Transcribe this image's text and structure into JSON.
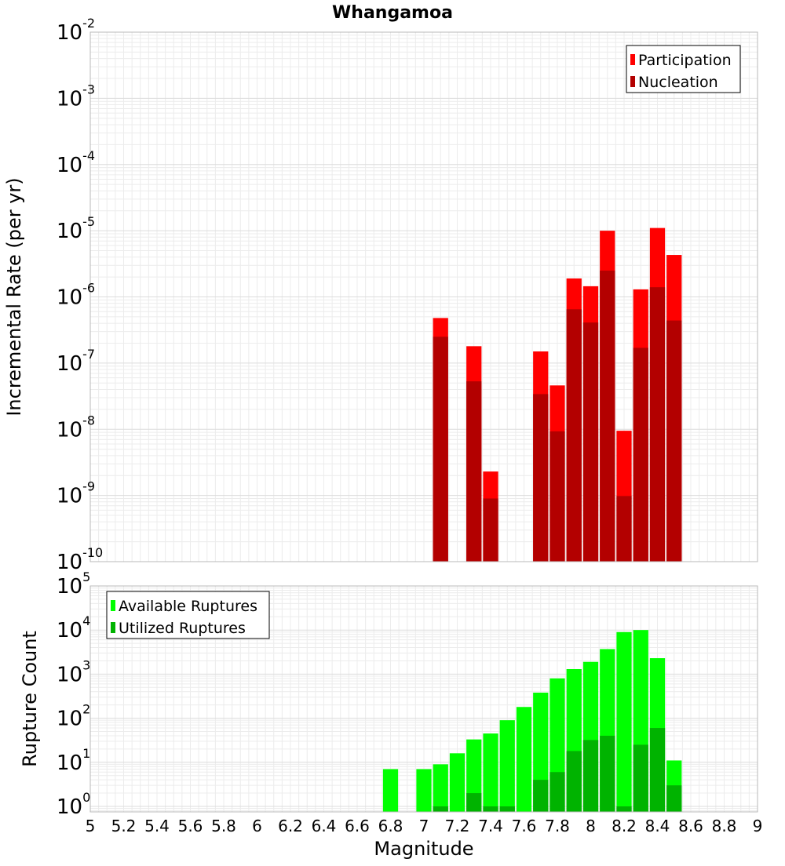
{
  "chart_data": [
    {
      "id": "rate",
      "type": "bar",
      "title": "Whangamoa",
      "xlabel": "",
      "ylabel": "Incremental Rate (per yr)",
      "yscale": "log",
      "ylim": [
        1e-10,
        0.01
      ],
      "xlim": [
        5,
        9
      ],
      "y_tick_exponents": [
        -10,
        -9,
        -8,
        -7,
        -6,
        -5,
        -4,
        -3,
        -2
      ],
      "grid": true,
      "legend_position": "top-right",
      "bin_width": 0.1,
      "series": [
        {
          "name": "Participation",
          "color": "#ff0000",
          "x": [
            7.1,
            7.3,
            7.4,
            7.7,
            7.8,
            7.9,
            8.0,
            8.1,
            8.2,
            8.3,
            8.4,
            8.5
          ],
          "values": [
            4.8e-07,
            1.8e-07,
            2.3e-09,
            1.5e-07,
            4.6e-08,
            1.9e-06,
            1.45e-06,
            1e-05,
            9.5e-09,
            1.3e-06,
            1.1e-05,
            4.3e-06
          ]
        },
        {
          "name": "Nucleation",
          "color": "#b30000",
          "x": [
            7.1,
            7.3,
            7.4,
            7.7,
            7.8,
            7.9,
            8.0,
            8.1,
            8.2,
            8.3,
            8.4,
            8.5
          ],
          "values": [
            2.5e-07,
            5.3e-08,
            9e-10,
            3.4e-08,
            9.3e-09,
            6.5e-07,
            4.1e-07,
            2.5e-06,
            9.8e-10,
            1.7e-07,
            1.4e-06,
            4.4e-07
          ]
        }
      ]
    },
    {
      "id": "count",
      "type": "bar",
      "xlabel": "Magnitude",
      "ylabel": "Rupture Count",
      "yscale": "log",
      "ylim": [
        0.75,
        100000
      ],
      "xlim": [
        5,
        9
      ],
      "y_tick_exponents": [
        0,
        1,
        2,
        3,
        4,
        5
      ],
      "x_ticks": [
        "5",
        "5.2",
        "5.4",
        "5.6",
        "5.8",
        "6",
        "6.2",
        "6.4",
        "6.6",
        "6.8",
        "7",
        "7.2",
        "7.4",
        "7.6",
        "7.8",
        "8",
        "8.2",
        "8.4",
        "8.6",
        "8.8",
        "9"
      ],
      "grid": true,
      "legend_position": "top-left",
      "bin_width": 0.1,
      "series": [
        {
          "name": "Available Ruptures",
          "color": "#00ff00",
          "x": [
            6.8,
            7.0,
            7.1,
            7.2,
            7.3,
            7.4,
            7.5,
            7.6,
            7.7,
            7.8,
            7.9,
            8.0,
            8.1,
            8.2,
            8.3,
            8.4,
            8.5
          ],
          "values": [
            7,
            7,
            9,
            16,
            33,
            45,
            90,
            180,
            380,
            800,
            1300,
            1900,
            3700,
            9000,
            10000,
            2300,
            11
          ]
        },
        {
          "name": "Utilized Ruptures",
          "color": "#00b300",
          "x": [
            7.1,
            7.3,
            7.4,
            7.5,
            7.7,
            7.8,
            7.9,
            8.0,
            8.1,
            8.2,
            8.3,
            8.4,
            8.5
          ],
          "values": [
            1,
            2,
            1,
            1,
            4,
            6,
            18,
            32,
            40,
            1,
            25,
            60,
            3
          ]
        }
      ]
    }
  ]
}
